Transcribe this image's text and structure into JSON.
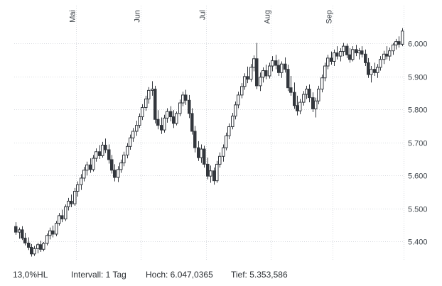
{
  "footer": {
    "hl": "13,0%HL",
    "interval": "Intervall: 1 Tag",
    "high": "Hoch: 6.047,0365",
    "low": "Tief: 5.353,586"
  },
  "chart_data": {
    "type": "candlestick",
    "title": "",
    "interval": "1 Tag",
    "high_label": "6.047,0365",
    "low_label": "5.353,586",
    "grid": true,
    "legend_position": "none",
    "colors": {
      "bearish": "#33373d",
      "bullish_fill": "#ffffff",
      "outline": "#33373d",
      "grid": "#d9dce1",
      "axis_label": "#3d4349"
    },
    "y_axis": {
      "domain": [
        5340,
        6115
      ],
      "ticks": [
        {
          "value": 6000,
          "label": "6.000"
        },
        {
          "value": 5900,
          "label": "5.900"
        },
        {
          "value": 5800,
          "label": "5.800"
        },
        {
          "value": 5700,
          "label": "5.700"
        },
        {
          "value": 5600,
          "label": "5.600"
        },
        {
          "value": 5500,
          "label": "5.500"
        },
        {
          "value": 5400,
          "label": "5.400"
        }
      ]
    },
    "x_axis": {
      "total_days": 126,
      "months": [
        {
          "label": "Mai",
          "day_index": 20
        },
        {
          "label": "Jun",
          "day_index": 41
        },
        {
          "label": "Jul",
          "day_index": 62
        },
        {
          "label": "Aug",
          "day_index": 83
        },
        {
          "label": "Sep",
          "day_index": 103
        }
      ]
    },
    "candles": [
      [
        5445,
        5458,
        5420,
        5428
      ],
      [
        5428,
        5442,
        5408,
        5435
      ],
      [
        5435,
        5446,
        5404,
        5410
      ],
      [
        5410,
        5426,
        5388,
        5395
      ],
      [
        5395,
        5412,
        5374,
        5382
      ],
      [
        5382,
        5392,
        5354,
        5362
      ],
      [
        5362,
        5386,
        5356,
        5378
      ],
      [
        5378,
        5396,
        5364,
        5390
      ],
      [
        5390,
        5402,
        5368,
        5376
      ],
      [
        5376,
        5398,
        5370,
        5394
      ],
      [
        5394,
        5424,
        5388,
        5418
      ],
      [
        5418,
        5442,
        5406,
        5432
      ],
      [
        5432,
        5448,
        5412,
        5422
      ],
      [
        5422,
        5462,
        5416,
        5455
      ],
      [
        5455,
        5486,
        5448,
        5478
      ],
      [
        5478,
        5496,
        5458,
        5468
      ],
      [
        5468,
        5512,
        5462,
        5505
      ],
      [
        5505,
        5532,
        5494,
        5522
      ],
      [
        5522,
        5542,
        5504,
        5514
      ],
      [
        5514,
        5562,
        5508,
        5552
      ],
      [
        5552,
        5582,
        5536,
        5572
      ],
      [
        5572,
        5604,
        5556,
        5592
      ],
      [
        5592,
        5626,
        5582,
        5616
      ],
      [
        5616,
        5642,
        5600,
        5632
      ],
      [
        5632,
        5652,
        5608,
        5618
      ],
      [
        5618,
        5662,
        5612,
        5652
      ],
      [
        5652,
        5682,
        5642,
        5672
      ],
      [
        5672,
        5692,
        5650,
        5660
      ],
      [
        5660,
        5702,
        5654,
        5692
      ],
      [
        5692,
        5712,
        5668,
        5678
      ],
      [
        5678,
        5694,
        5636,
        5648
      ],
      [
        5648,
        5662,
        5606,
        5616
      ],
      [
        5616,
        5634,
        5582,
        5594
      ],
      [
        5594,
        5628,
        5580,
        5618
      ],
      [
        5618,
        5648,
        5608,
        5638
      ],
      [
        5638,
        5672,
        5628,
        5662
      ],
      [
        5662,
        5698,
        5652,
        5688
      ],
      [
        5688,
        5724,
        5678,
        5714
      ],
      [
        5714,
        5744,
        5702,
        5734
      ],
      [
        5734,
        5766,
        5720,
        5752
      ],
      [
        5752,
        5788,
        5744,
        5778
      ],
      [
        5778,
        5816,
        5768,
        5806
      ],
      [
        5806,
        5842,
        5796,
        5832
      ],
      [
        5832,
        5868,
        5818,
        5858
      ],
      [
        5858,
        5886,
        5842,
        5862
      ],
      [
        5862,
        5872,
        5758,
        5770
      ],
      [
        5770,
        5798,
        5740,
        5752
      ],
      [
        5752,
        5776,
        5726,
        5738
      ],
      [
        5738,
        5784,
        5730,
        5774
      ],
      [
        5774,
        5804,
        5760,
        5794
      ],
      [
        5794,
        5810,
        5764,
        5778
      ],
      [
        5778,
        5798,
        5744,
        5758
      ],
      [
        5758,
        5794,
        5752,
        5788
      ],
      [
        5788,
        5830,
        5780,
        5820
      ],
      [
        5820,
        5854,
        5810,
        5844
      ],
      [
        5844,
        5860,
        5814,
        5828
      ],
      [
        5828,
        5844,
        5774,
        5788
      ],
      [
        5788,
        5804,
        5724,
        5734
      ],
      [
        5734,
        5750,
        5670,
        5684
      ],
      [
        5684,
        5704,
        5644,
        5654
      ],
      [
        5654,
        5694,
        5638,
        5680
      ],
      [
        5680,
        5690,
        5624,
        5634
      ],
      [
        5634,
        5654,
        5588,
        5598
      ],
      [
        5598,
        5630,
        5578,
        5614
      ],
      [
        5614,
        5624,
        5572,
        5584
      ],
      [
        5584,
        5644,
        5578,
        5634
      ],
      [
        5634,
        5670,
        5624,
        5658
      ],
      [
        5658,
        5694,
        5642,
        5684
      ],
      [
        5684,
        5730,
        5676,
        5720
      ],
      [
        5720,
        5758,
        5710,
        5748
      ],
      [
        5748,
        5790,
        5740,
        5780
      ],
      [
        5780,
        5824,
        5770,
        5814
      ],
      [
        5814,
        5854,
        5804,
        5844
      ],
      [
        5844,
        5880,
        5834,
        5870
      ],
      [
        5870,
        5910,
        5860,
        5900
      ],
      [
        5900,
        5930,
        5880,
        5892
      ],
      [
        5892,
        5938,
        5884,
        5928
      ],
      [
        5928,
        5964,
        5916,
        5954
      ],
      [
        5954,
        6002,
        5862,
        5872
      ],
      [
        5872,
        5912,
        5856,
        5898
      ],
      [
        5898,
        5928,
        5882,
        5918
      ],
      [
        5918,
        5936,
        5892,
        5902
      ],
      [
        5902,
        5942,
        5894,
        5932
      ],
      [
        5932,
        5962,
        5916,
        5948
      ],
      [
        5948,
        5966,
        5922,
        5934
      ],
      [
        5934,
        5952,
        5902,
        5912
      ],
      [
        5912,
        5946,
        5896,
        5938
      ],
      [
        5938,
        5958,
        5912,
        5922
      ],
      [
        5922,
        5936,
        5856,
        5866
      ],
      [
        5866,
        5902,
        5842,
        5852
      ],
      [
        5852,
        5882,
        5802,
        5812
      ],
      [
        5812,
        5842,
        5782,
        5796
      ],
      [
        5796,
        5832,
        5786,
        5822
      ],
      [
        5822,
        5856,
        5812,
        5846
      ],
      [
        5846,
        5872,
        5832,
        5862
      ],
      [
        5862,
        5876,
        5822,
        5836
      ],
      [
        5836,
        5852,
        5792,
        5802
      ],
      [
        5802,
        5836,
        5776,
        5826
      ],
      [
        5826,
        5872,
        5816,
        5862
      ],
      [
        5862,
        5906,
        5852,
        5896
      ],
      [
        5896,
        5942,
        5886,
        5932
      ],
      [
        5932,
        5966,
        5922,
        5956
      ],
      [
        5956,
        5976,
        5936,
        5946
      ],
      [
        5946,
        5982,
        5932,
        5972
      ],
      [
        5972,
        5992,
        5952,
        5962
      ],
      [
        5962,
        5986,
        5946,
        5976
      ],
      [
        5976,
        6002,
        5962,
        5992
      ],
      [
        5992,
        6000,
        5956,
        5966
      ],
      [
        5966,
        5986,
        5942,
        5952
      ],
      [
        5952,
        5992,
        5946,
        5982
      ],
      [
        5982,
        5996,
        5962,
        5972
      ],
      [
        5972,
        5986,
        5952,
        5978
      ],
      [
        5978,
        5992,
        5958,
        5968
      ],
      [
        5968,
        5982,
        5932,
        5942
      ],
      [
        5942,
        5956,
        5896,
        5906
      ],
      [
        5906,
        5932,
        5882,
        5922
      ],
      [
        5922,
        5942,
        5902,
        5912
      ],
      [
        5912,
        5938,
        5896,
        5928
      ],
      [
        5928,
        5962,
        5918,
        5952
      ],
      [
        5952,
        5978,
        5938,
        5968
      ],
      [
        5968,
        5992,
        5952,
        5962
      ],
      [
        5962,
        5988,
        5948,
        5978
      ],
      [
        5978,
        6002,
        5966,
        5996
      ],
      [
        5996,
        6014,
        5982,
        6006
      ],
      [
        6006,
        6022,
        5988,
        5998
      ],
      [
        5998,
        6047,
        5992,
        6038
      ]
    ]
  }
}
